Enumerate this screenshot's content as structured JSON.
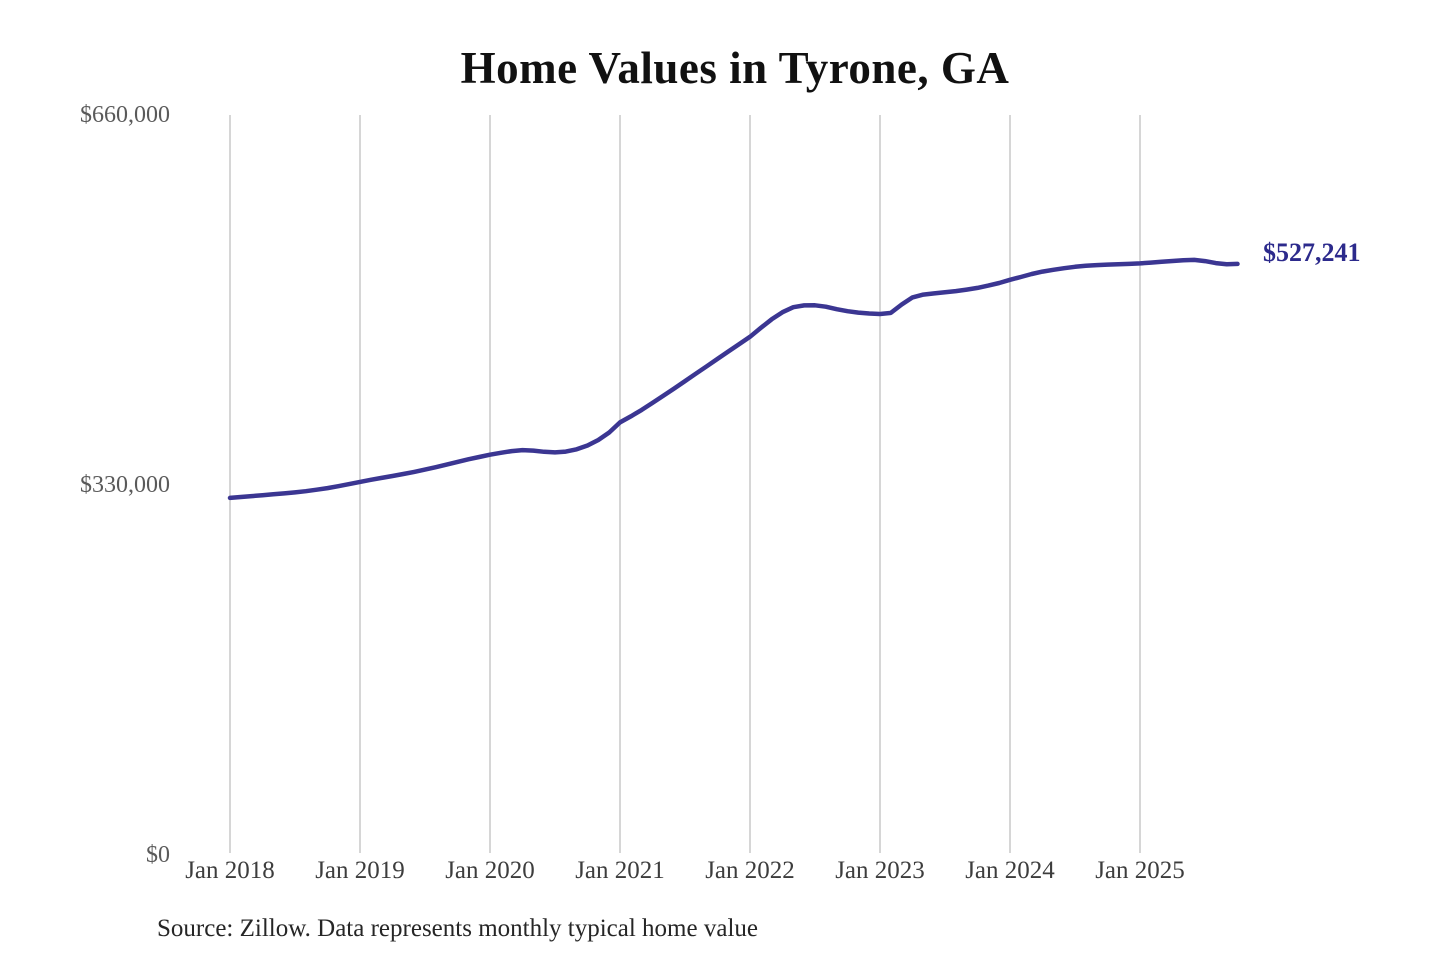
{
  "chart": {
    "title": "Home Values in Tyrone, GA",
    "end_label": "$527,241",
    "source_note": "Source: Zillow. Data represents monthly typical home value"
  },
  "y_axis": {
    "ticks": [
      {
        "label": "$660,000",
        "value": 660000
      },
      {
        "label": "$330,000",
        "value": 330000
      },
      {
        "label": "$0",
        "value": 0
      }
    ]
  },
  "x_axis": {
    "ticks": [
      {
        "label": "Jan 2018",
        "month_index": 0
      },
      {
        "label": "Jan 2019",
        "month_index": 12
      },
      {
        "label": "Jan 2020",
        "month_index": 24
      },
      {
        "label": "Jan 2021",
        "month_index": 36
      },
      {
        "label": "Jan 2022",
        "month_index": 48
      },
      {
        "label": "Jan 2023",
        "month_index": 60
      },
      {
        "label": "Jan 2024",
        "month_index": 72
      },
      {
        "label": "Jan 2025",
        "month_index": 84
      }
    ]
  },
  "colors": {
    "line": "#3b3692",
    "end_label": "#2c2a8c",
    "gridline": "#c9c9c9",
    "x_tick_text": "#3d3d3d",
    "y_tick_text": "#5a5a5a",
    "title_text": "#111111",
    "source_text": "#262626",
    "background": "#ffffff"
  },
  "chart_data": {
    "type": "line",
    "title": "Home Values in Tyrone, GA",
    "series_name": "Monthly typical home value (USD)",
    "xlabel": "",
    "ylabel": "",
    "ylim": [
      0,
      660000
    ],
    "grid": "vertical-yearly",
    "legend": "none",
    "final_value": 527241,
    "final_value_label": "$527,241",
    "x": [
      "2018-01",
      "2018-02",
      "2018-03",
      "2018-04",
      "2018-05",
      "2018-06",
      "2018-07",
      "2018-08",
      "2018-09",
      "2018-10",
      "2018-11",
      "2018-12",
      "2019-01",
      "2019-02",
      "2019-03",
      "2019-04",
      "2019-05",
      "2019-06",
      "2019-07",
      "2019-08",
      "2019-09",
      "2019-10",
      "2019-11",
      "2019-12",
      "2020-01",
      "2020-02",
      "2020-03",
      "2020-04",
      "2020-05",
      "2020-06",
      "2020-07",
      "2020-08",
      "2020-09",
      "2020-10",
      "2020-11",
      "2020-12",
      "2021-01",
      "2021-02",
      "2021-03",
      "2021-04",
      "2021-05",
      "2021-06",
      "2021-07",
      "2021-08",
      "2021-09",
      "2021-10",
      "2021-11",
      "2021-12",
      "2022-01",
      "2022-02",
      "2022-03",
      "2022-04",
      "2022-05",
      "2022-06",
      "2022-07",
      "2022-08",
      "2022-09",
      "2022-10",
      "2022-11",
      "2022-12",
      "2023-01",
      "2023-02",
      "2023-03",
      "2023-04",
      "2023-05",
      "2023-06",
      "2023-07",
      "2023-08",
      "2023-09",
      "2023-10",
      "2023-11",
      "2023-12",
      "2024-01",
      "2024-02",
      "2024-03",
      "2024-04",
      "2024-05",
      "2024-06",
      "2024-07",
      "2024-08",
      "2024-09",
      "2024-10",
      "2024-11",
      "2024-12",
      "2025-01",
      "2025-02",
      "2025-03",
      "2025-04",
      "2025-05",
      "2025-06",
      "2025-07",
      "2025-08",
      "2025-09",
      "2025-10"
    ],
    "values": [
      318500,
      319300,
      320100,
      320900,
      321700,
      322500,
      323400,
      324500,
      325800,
      327200,
      328900,
      330800,
      332800,
      334600,
      336300,
      338000,
      339800,
      341700,
      343700,
      345900,
      348200,
      350600,
      352900,
      355000,
      357000,
      358700,
      360200,
      361100,
      360700,
      359600,
      359100,
      359800,
      361800,
      365200,
      370100,
      376800,
      385800,
      391200,
      397000,
      403200,
      409600,
      416100,
      422700,
      429300,
      435900,
      442500,
      449100,
      455700,
      462200,
      470100,
      477800,
      484100,
      488600,
      490200,
      490300,
      489000,
      486800,
      485000,
      483800,
      483000,
      482500,
      483500,
      491000,
      497300,
      499800,
      500900,
      501900,
      502900,
      504300,
      505800,
      507800,
      510200,
      513000,
      515500,
      518200,
      520300,
      521900,
      523400,
      524600,
      525500,
      526100,
      526600,
      526900,
      527200,
      527600,
      528400,
      529200,
      529800,
      530500,
      530800,
      529700,
      527900,
      526900,
      527241
    ]
  }
}
